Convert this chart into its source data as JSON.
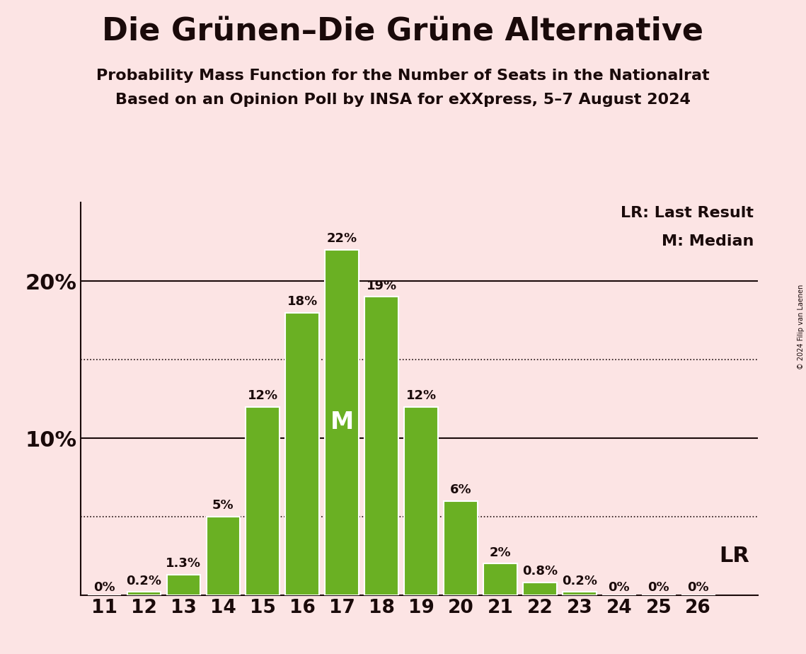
{
  "title": "Die Grünen–Die Grüne Alternative",
  "subtitle1": "Probability Mass Function for the Number of Seats in the Nationalrat",
  "subtitle2": "Based on an Opinion Poll by INSA for eXXpress, 5–7 August 2024",
  "copyright": "© 2024 Filip van Laenen",
  "seats": [
    11,
    12,
    13,
    14,
    15,
    16,
    17,
    18,
    19,
    20,
    21,
    22,
    23,
    24,
    25,
    26
  ],
  "probabilities": [
    0.0,
    0.2,
    1.3,
    5.0,
    12.0,
    18.0,
    22.0,
    19.0,
    12.0,
    6.0,
    2.0,
    0.8,
    0.2,
    0.0,
    0.0,
    0.0
  ],
  "labels": [
    "0%",
    "0.2%",
    "1.3%",
    "5%",
    "12%",
    "18%",
    "22%",
    "19%",
    "12%",
    "6%",
    "2%",
    "0.8%",
    "0.2%",
    "0%",
    "0%",
    "0%"
  ],
  "bar_color": "#6ab023",
  "background_color": "#fce4e4",
  "text_color": "#1a0a0a",
  "median_seat": 17,
  "lr_seat": 26,
  "lr_label": "LR",
  "median_label": "M",
  "legend_lr": "LR: Last Result",
  "legend_m": "M: Median",
  "solid_ylines": [
    10,
    20
  ],
  "dotted_ylines": [
    5,
    15
  ],
  "ylim": [
    0,
    25
  ],
  "bar_edge_color": "white",
  "bar_linewidth": 1.5
}
